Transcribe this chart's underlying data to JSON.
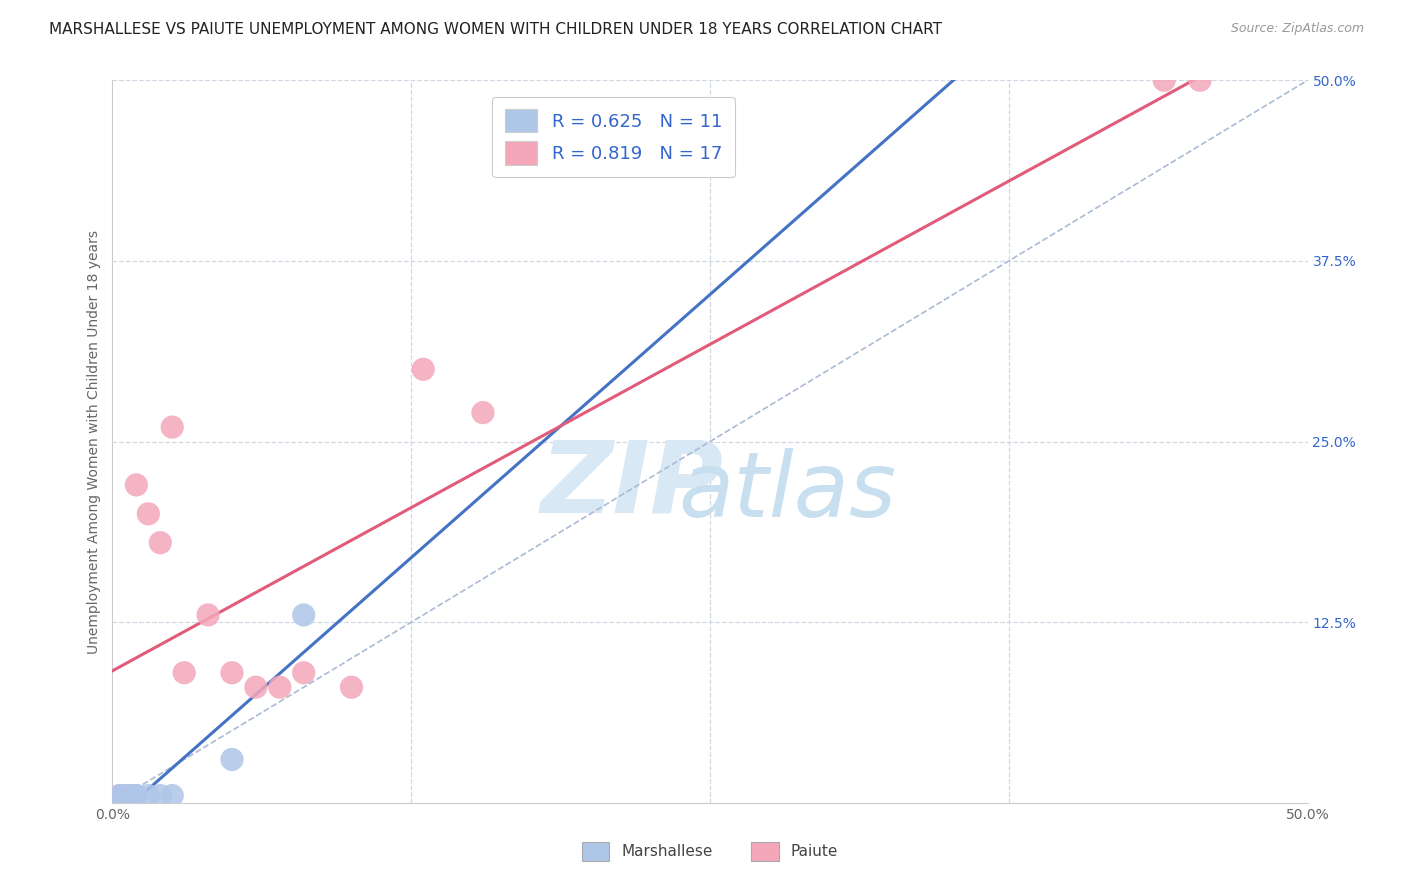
{
  "title": "MARSHALLESE VS PAIUTE UNEMPLOYMENT AMONG WOMEN WITH CHILDREN UNDER 18 YEARS CORRELATION CHART",
  "source": "Source: ZipAtlas.com",
  "ylabel": "Unemployment Among Women with Children Under 18 years",
  "xlim": [
    0.0,
    0.5
  ],
  "ylim": [
    0.0,
    0.5
  ],
  "marshallese_R": 0.625,
  "marshallese_N": 11,
  "paiute_R": 0.819,
  "paiute_N": 17,
  "marshallese_color": "#aec6e8",
  "paiute_color": "#f4a7b9",
  "marshallese_line_color": "#4472c4",
  "paiute_line_color": "#e05c7a",
  "diagonal_color": "#aabbd4",
  "background_color": "#ffffff",
  "grid_color": "#d0d8e4",
  "watermark_color": "#d8e8f5",
  "legend_color": "#3366cc",
  "title_color": "#222222",
  "axis_label_color": "#666666",
  "tick_color_y": "#3366cc",
  "tick_color_x": "#666666",
  "title_fontsize": 11,
  "label_fontsize": 10,
  "tick_fontsize": 10,
  "source_fontsize": 9,
  "marshallese_x": [
    0.003,
    0.005,
    0.007,
    0.008,
    0.01,
    0.01,
    0.015,
    0.02,
    0.025,
    0.05,
    0.08
  ],
  "marshallese_y": [
    0.005,
    0.005,
    0.003,
    0.005,
    0.005,
    0.005,
    0.005,
    0.005,
    0.005,
    0.03,
    0.13
  ],
  "paiute_x": [
    0.003,
    0.007,
    0.01,
    0.015,
    0.02,
    0.025,
    0.03,
    0.04,
    0.05,
    0.06,
    0.07,
    0.08,
    0.1,
    0.13,
    0.155,
    0.44,
    0.455
  ],
  "paiute_y": [
    0.005,
    0.005,
    0.22,
    0.2,
    0.18,
    0.26,
    0.09,
    0.13,
    0.09,
    0.08,
    0.08,
    0.09,
    0.08,
    0.3,
    0.27,
    0.5,
    0.5
  ]
}
